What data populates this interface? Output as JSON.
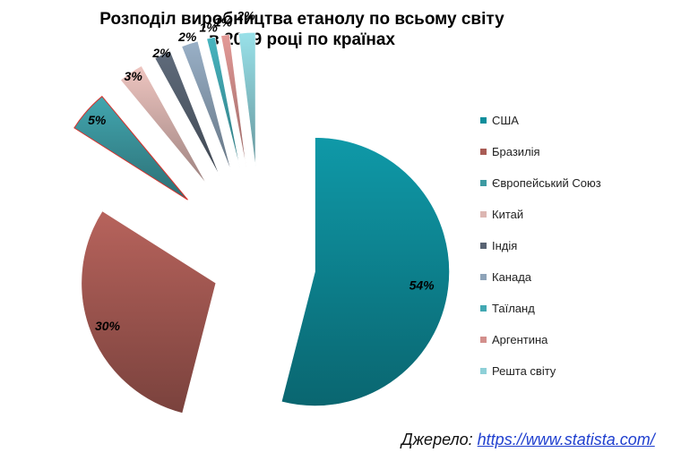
{
  "chart_data": {
    "type": "pie",
    "title": [
      "Розподіл виробництва етанолу по всьому світу",
      "в 2019 році по країнах"
    ],
    "categories": [
      "США",
      "Бразилія",
      "Європейський Союз",
      "Китай",
      "Індія",
      "Канада",
      "Таїланд",
      "Аргентина",
      "Решта світу"
    ],
    "values": [
      54,
      30,
      5,
      3,
      2,
      2,
      1,
      1,
      2
    ],
    "data_labels": [
      "54%",
      "30%",
      "5%",
      "3%",
      "2%",
      "2%",
      "1%",
      "1%",
      "2%"
    ],
    "colors": [
      "#0e8e9c",
      "#a95c55",
      "#3d9aa2",
      "#dcb6b2",
      "#586372",
      "#8ea3b8",
      "#42a8b2",
      "#d38f8c",
      "#8ed0d8"
    ],
    "legend_position": "right",
    "exploded": true
  },
  "source": {
    "label": "Джерело:",
    "link": "https://www.statista.com/"
  }
}
